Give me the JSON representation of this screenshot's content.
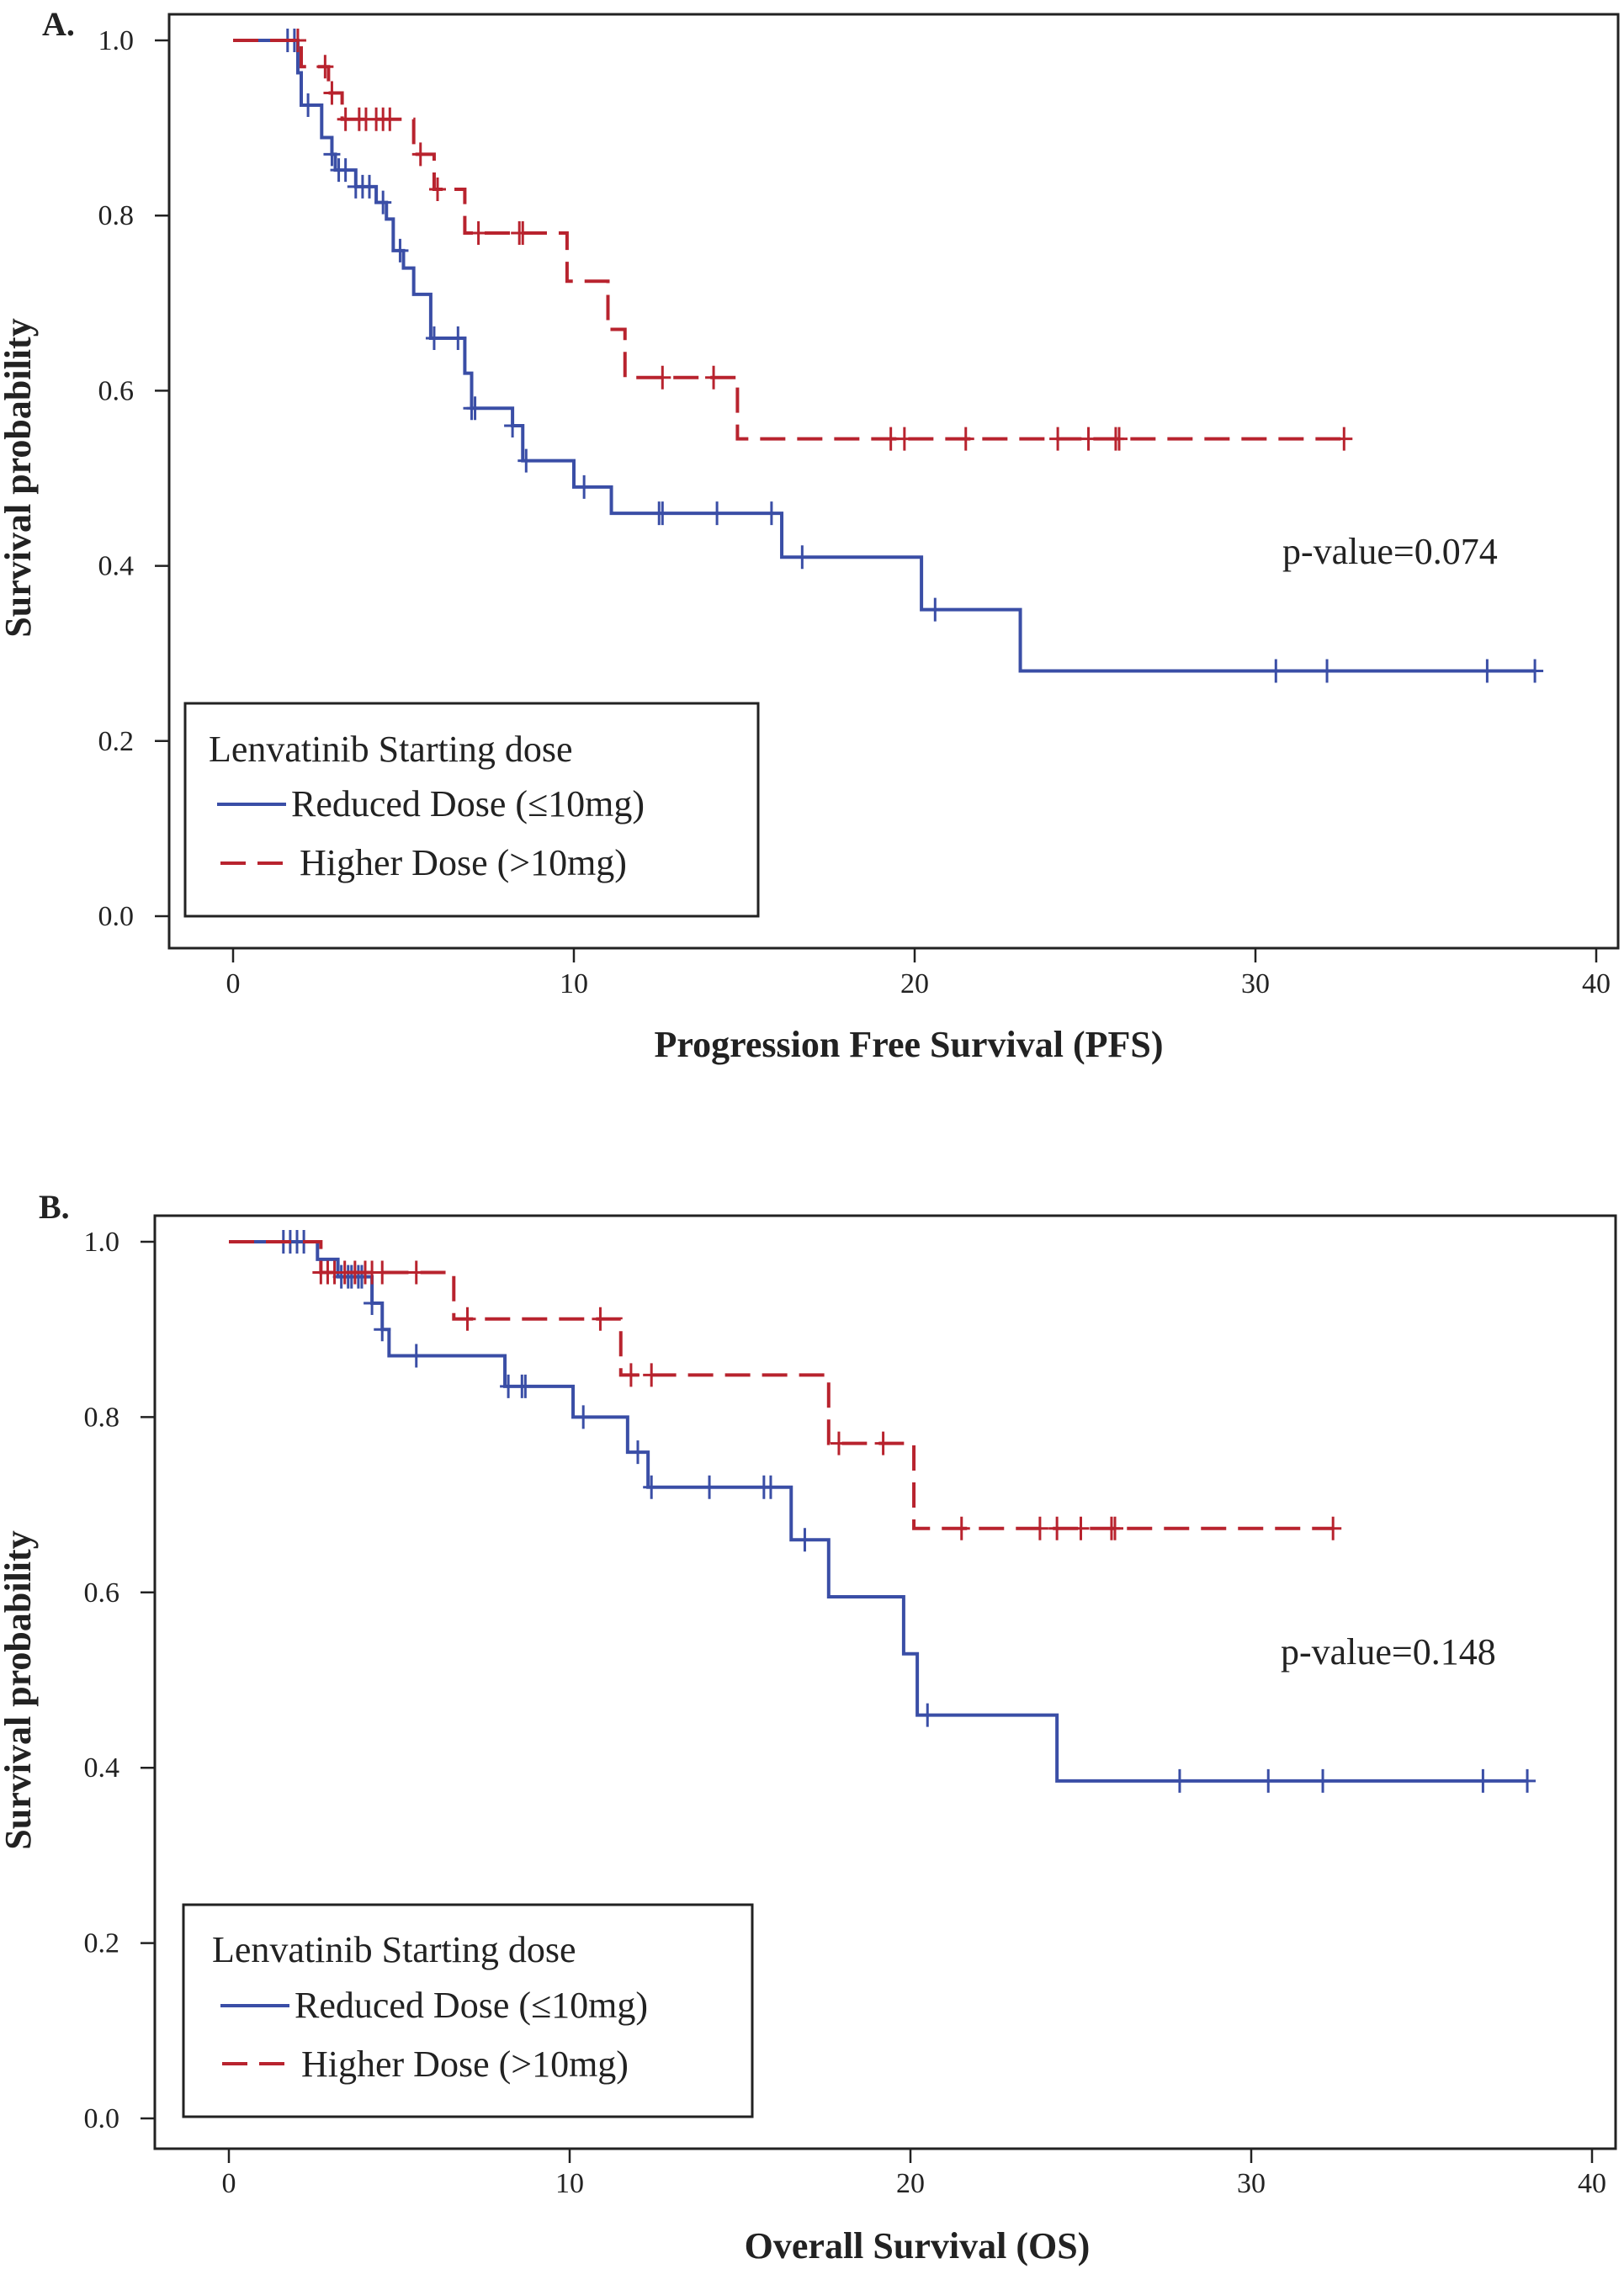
{
  "chart_data": [
    {
      "type": "line",
      "panel_label": "A.",
      "xlabel": "Progression Free Survival (PFS)",
      "ylabel": "Survival probability",
      "xlim": [
        0,
        40
      ],
      "ylim": [
        0,
        1
      ],
      "xticks": [
        "0",
        "10",
        "20",
        "30",
        "40"
      ],
      "yticks": [
        "0.0",
        "0.2",
        "0.4",
        "0.6",
        "0.8",
        "1.0"
      ],
      "annotation": "p-value=0.074",
      "legend": {
        "title": "Lenvatinib Starting dose",
        "placement": "bottom-left"
      },
      "series": [
        {
          "name": "Reduced Dose (≤10mg)",
          "color": "#3a4ea6",
          "dash": false,
          "steps": [
            [
              0,
              1
            ],
            [
              1.9,
              0.963
            ],
            [
              2.0,
              0.926
            ],
            [
              2.6,
              0.889
            ],
            [
              2.9,
              0.87
            ],
            [
              3.0,
              0.852
            ],
            [
              3.6,
              0.833
            ],
            [
              4.2,
              0.815
            ],
            [
              4.5,
              0.796
            ],
            [
              4.7,
              0.76
            ],
            [
              5.0,
              0.74
            ],
            [
              5.3,
              0.71
            ],
            [
              5.8,
              0.66
            ],
            [
              6.8,
              0.62
            ],
            [
              7.0,
              0.58
            ],
            [
              8.2,
              0.56
            ],
            [
              8.5,
              0.52
            ],
            [
              10.0,
              0.49
            ],
            [
              11.1,
              0.46
            ],
            [
              16.1,
              0.41
            ],
            [
              20.2,
              0.35
            ],
            [
              23.1,
              0.28
            ]
          ],
          "end": 38.2,
          "censored": [
            1.6,
            1.8,
            2.2,
            2.9,
            3.1,
            3.3,
            3.6,
            3.8,
            4.0,
            4.4,
            4.9,
            5.9,
            6.6,
            7.0,
            7.1,
            8.2,
            8.6,
            10.3,
            12.5,
            12.6,
            14.2,
            15.8,
            16.7,
            20.6,
            30.6,
            32.1,
            36.8,
            38.2
          ]
        },
        {
          "name": "Higher Dose (>10mg)",
          "color": "#b8232e",
          "dash": true,
          "steps": [
            [
              0,
              1
            ],
            [
              2.0,
              0.97
            ],
            [
              2.8,
              0.94
            ],
            [
              3.2,
              0.91
            ],
            [
              5.3,
              0.87
            ],
            [
              5.9,
              0.83
            ],
            [
              6.8,
              0.78
            ],
            [
              9.8,
              0.725
            ],
            [
              11.0,
              0.67
            ],
            [
              11.5,
              0.615
            ],
            [
              14.8,
              0.545
            ]
          ],
          "end": 32.6,
          "censored": [
            1.9,
            2.7,
            2.9,
            3.3,
            3.7,
            3.9,
            4.2,
            4.4,
            4.6,
            5.5,
            6.0,
            7.2,
            8.4,
            8.5,
            12.6,
            14.1,
            19.3,
            19.7,
            21.5,
            24.2,
            25.1,
            25.9,
            26.0,
            32.6
          ]
        }
      ]
    },
    {
      "type": "line",
      "panel_label": "B.",
      "xlabel": "Overall Survival (OS)",
      "ylabel": "Survival probability",
      "xlim": [
        0,
        40
      ],
      "ylim": [
        0,
        1
      ],
      "xticks": [
        "0",
        "10",
        "20",
        "30",
        "40"
      ],
      "yticks": [
        "0.0",
        "0.2",
        "0.4",
        "0.6",
        "0.8",
        "1.0"
      ],
      "annotation": "p-value=0.148",
      "legend": {
        "title": "Lenvatinib Starting dose",
        "placement": "bottom-left"
      },
      "series": [
        {
          "name": "Reduced Dose (≤10mg)",
          "color": "#3a4ea6",
          "dash": false,
          "steps": [
            [
              0,
              1
            ],
            [
              2.6,
              0.98
            ],
            [
              3.2,
              0.96
            ],
            [
              4.2,
              0.93
            ],
            [
              4.5,
              0.9
            ],
            [
              4.7,
              0.87
            ],
            [
              8.1,
              0.835
            ],
            [
              10.1,
              0.8
            ],
            [
              11.7,
              0.76
            ],
            [
              12.3,
              0.72
            ],
            [
              16.5,
              0.66
            ],
            [
              17.6,
              0.595
            ],
            [
              19.8,
              0.53
            ],
            [
              20.2,
              0.46
            ],
            [
              24.3,
              0.385
            ]
          ],
          "end": 38.1,
          "censored": [
            1.6,
            1.8,
            2.0,
            2.2,
            3.3,
            3.5,
            3.6,
            3.8,
            3.9,
            4.2,
            4.5,
            5.5,
            8.2,
            8.6,
            8.7,
            10.4,
            12.0,
            12.4,
            14.1,
            15.7,
            15.9,
            16.9,
            20.5,
            27.9,
            30.5,
            32.1,
            36.8,
            38.1
          ]
        },
        {
          "name": "Higher Dose (>10mg)",
          "color": "#b8232e",
          "dash": true,
          "steps": [
            [
              0,
              1
            ],
            [
              2.7,
              0.965
            ],
            [
              6.6,
              0.912
            ],
            [
              11.5,
              0.848
            ],
            [
              17.6,
              0.77
            ],
            [
              20.1,
              0.673
            ]
          ],
          "end": 32.4,
          "censored": [
            2.7,
            2.9,
            3.1,
            3.4,
            3.7,
            4.0,
            4.2,
            4.5,
            5.5,
            7.0,
            10.9,
            11.8,
            12.4,
            17.9,
            19.2,
            21.5,
            23.8,
            24.3,
            25.0,
            25.9,
            26.0,
            32.4
          ]
        }
      ]
    }
  ]
}
